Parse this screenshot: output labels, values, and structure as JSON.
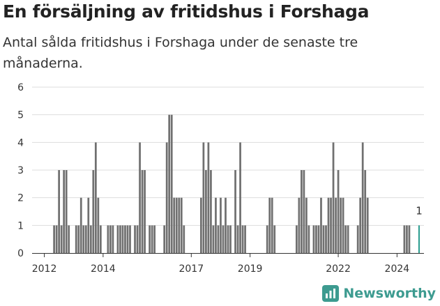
{
  "title": "En försäljning av fritidshus i Forshaga",
  "subtitle": "Antal sålda fritidshus i Forshaga under de senaste tre månaderna.",
  "brand": {
    "name": "Newsworthy",
    "icon": "newsworthy-logo-icon",
    "color": "#3d9b90"
  },
  "colors": {
    "bar": "#707070",
    "highlight": "#2a9d8f",
    "grid": "#dddddd",
    "axis": "#333333"
  },
  "chart_data": {
    "type": "bar",
    "x_start": "2011-08",
    "x_end": "2024-12",
    "ylim": [
      0,
      6
    ],
    "yticks": [
      0,
      1,
      2,
      3,
      4,
      5,
      6
    ],
    "xticks": [
      {
        "label": "2012",
        "date": "2012-01"
      },
      {
        "label": "2014",
        "date": "2014-01"
      },
      {
        "label": "2017",
        "date": "2017-01"
      },
      {
        "label": "2019",
        "date": "2019-01"
      },
      {
        "label": "2022",
        "date": "2022-01"
      },
      {
        "label": "2024",
        "date": "2024-01"
      }
    ],
    "grid": true,
    "series": [
      {
        "values": [
          {
            "date": "2012-05",
            "value": 1
          },
          {
            "date": "2012-06",
            "value": 1
          },
          {
            "date": "2012-07",
            "value": 3
          },
          {
            "date": "2012-08",
            "value": 1
          },
          {
            "date": "2012-09",
            "value": 3
          },
          {
            "date": "2012-10",
            "value": 3
          },
          {
            "date": "2012-11",
            "value": 1
          },
          {
            "date": "2013-02",
            "value": 1
          },
          {
            "date": "2013-03",
            "value": 1
          },
          {
            "date": "2013-04",
            "value": 2
          },
          {
            "date": "2013-05",
            "value": 1
          },
          {
            "date": "2013-06",
            "value": 1
          },
          {
            "date": "2013-07",
            "value": 2
          },
          {
            "date": "2013-08",
            "value": 1
          },
          {
            "date": "2013-09",
            "value": 3
          },
          {
            "date": "2013-10",
            "value": 4
          },
          {
            "date": "2013-11",
            "value": 2
          },
          {
            "date": "2013-12",
            "value": 1
          },
          {
            "date": "2014-03",
            "value": 1
          },
          {
            "date": "2014-04",
            "value": 1
          },
          {
            "date": "2014-05",
            "value": 1
          },
          {
            "date": "2014-07",
            "value": 1
          },
          {
            "date": "2014-08",
            "value": 1
          },
          {
            "date": "2014-09",
            "value": 1
          },
          {
            "date": "2014-10",
            "value": 1
          },
          {
            "date": "2014-11",
            "value": 1
          },
          {
            "date": "2014-12",
            "value": 1
          },
          {
            "date": "2015-02",
            "value": 1
          },
          {
            "date": "2015-03",
            "value": 1
          },
          {
            "date": "2015-04",
            "value": 4
          },
          {
            "date": "2015-05",
            "value": 3
          },
          {
            "date": "2015-06",
            "value": 3
          },
          {
            "date": "2015-08",
            "value": 1
          },
          {
            "date": "2015-09",
            "value": 1
          },
          {
            "date": "2015-10",
            "value": 1
          },
          {
            "date": "2016-02",
            "value": 1
          },
          {
            "date": "2016-03",
            "value": 4
          },
          {
            "date": "2016-04",
            "value": 5
          },
          {
            "date": "2016-05",
            "value": 5
          },
          {
            "date": "2016-06",
            "value": 2
          },
          {
            "date": "2016-07",
            "value": 2
          },
          {
            "date": "2016-08",
            "value": 2
          },
          {
            "date": "2016-09",
            "value": 2
          },
          {
            "date": "2016-10",
            "value": 1
          },
          {
            "date": "2017-05",
            "value": 2
          },
          {
            "date": "2017-06",
            "value": 4
          },
          {
            "date": "2017-07",
            "value": 3
          },
          {
            "date": "2017-08",
            "value": 4
          },
          {
            "date": "2017-09",
            "value": 3
          },
          {
            "date": "2017-10",
            "value": 1
          },
          {
            "date": "2017-11",
            "value": 2
          },
          {
            "date": "2017-12",
            "value": 1
          },
          {
            "date": "2018-01",
            "value": 2
          },
          {
            "date": "2018-02",
            "value": 1
          },
          {
            "date": "2018-03",
            "value": 2
          },
          {
            "date": "2018-04",
            "value": 1
          },
          {
            "date": "2018-05",
            "value": 1
          },
          {
            "date": "2018-07",
            "value": 3
          },
          {
            "date": "2018-08",
            "value": 1
          },
          {
            "date": "2018-09",
            "value": 4
          },
          {
            "date": "2018-10",
            "value": 1
          },
          {
            "date": "2018-11",
            "value": 1
          },
          {
            "date": "2019-08",
            "value": 1
          },
          {
            "date": "2019-09",
            "value": 2
          },
          {
            "date": "2019-10",
            "value": 2
          },
          {
            "date": "2019-11",
            "value": 1
          },
          {
            "date": "2020-08",
            "value": 1
          },
          {
            "date": "2020-09",
            "value": 2
          },
          {
            "date": "2020-10",
            "value": 3
          },
          {
            "date": "2020-11",
            "value": 3
          },
          {
            "date": "2020-12",
            "value": 2
          },
          {
            "date": "2021-01",
            "value": 1
          },
          {
            "date": "2021-03",
            "value": 1
          },
          {
            "date": "2021-04",
            "value": 1
          },
          {
            "date": "2021-05",
            "value": 1
          },
          {
            "date": "2021-06",
            "value": 2
          },
          {
            "date": "2021-07",
            "value": 1
          },
          {
            "date": "2021-08",
            "value": 1
          },
          {
            "date": "2021-09",
            "value": 2
          },
          {
            "date": "2021-10",
            "value": 2
          },
          {
            "date": "2021-11",
            "value": 4
          },
          {
            "date": "2021-12",
            "value": 2
          },
          {
            "date": "2022-01",
            "value": 3
          },
          {
            "date": "2022-02",
            "value": 2
          },
          {
            "date": "2022-03",
            "value": 2
          },
          {
            "date": "2022-04",
            "value": 1
          },
          {
            "date": "2022-05",
            "value": 1
          },
          {
            "date": "2022-09",
            "value": 1
          },
          {
            "date": "2022-10",
            "value": 2
          },
          {
            "date": "2022-11",
            "value": 4
          },
          {
            "date": "2022-12",
            "value": 3
          },
          {
            "date": "2023-01",
            "value": 2
          },
          {
            "date": "2024-04",
            "value": 1
          },
          {
            "date": "2024-05",
            "value": 1
          },
          {
            "date": "2024-06",
            "value": 1
          }
        ]
      }
    ],
    "highlight": {
      "date": "2024-10",
      "value": 1,
      "label": "1"
    }
  }
}
